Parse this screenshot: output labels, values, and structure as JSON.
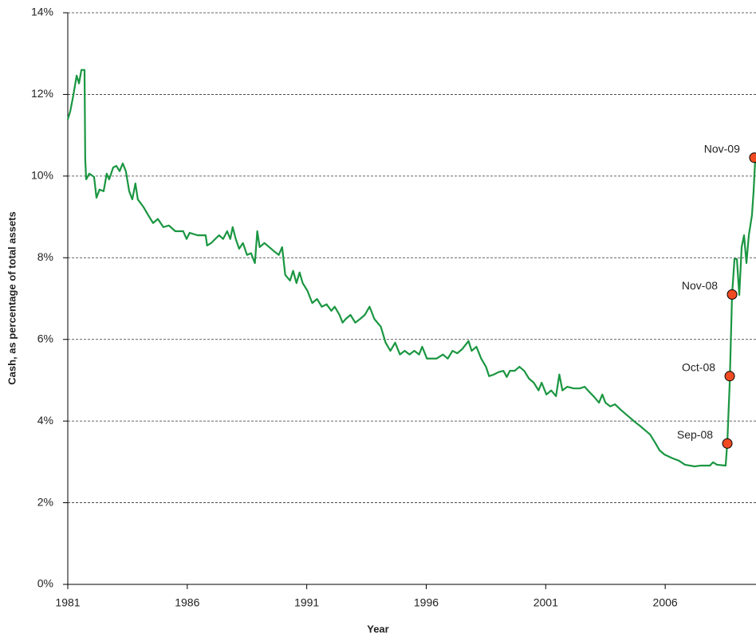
{
  "chart_data": {
    "type": "line",
    "xlabel": "Year",
    "ylabel": "Cash, as percentage of total assets",
    "color": "#1a9641",
    "marker_color": "#f04a23",
    "grid": true,
    "xlim": [
      1981,
      2009.8
    ],
    "xticks": [
      1981,
      1986,
      1991,
      1996,
      2001,
      2006
    ],
    "ylim": [
      0,
      14
    ],
    "yticks": [
      {
        "value": 0,
        "label": "0%"
      },
      {
        "value": 2,
        "label": "2%"
      },
      {
        "value": 4,
        "label": "4%"
      },
      {
        "value": 6,
        "label": "6%"
      },
      {
        "value": 8,
        "label": "8%"
      },
      {
        "value": 10,
        "label": "10%"
      },
      {
        "value": 12,
        "label": "12%"
      },
      {
        "value": 14,
        "label": "14%"
      }
    ],
    "x": [
      1981.0,
      1981.1,
      1981.23,
      1981.37,
      1981.47,
      1981.57,
      1981.7,
      1981.73,
      1981.77,
      1981.9,
      1982.1,
      1982.2,
      1982.33,
      1982.5,
      1982.63,
      1982.73,
      1982.9,
      1983.03,
      1983.17,
      1983.3,
      1983.43,
      1983.57,
      1983.7,
      1983.83,
      1983.93,
      1984.17,
      1984.37,
      1984.57,
      1984.77,
      1985.0,
      1985.23,
      1985.5,
      1985.83,
      1985.97,
      1986.1,
      1986.43,
      1986.77,
      1986.83,
      1987.0,
      1987.17,
      1987.33,
      1987.5,
      1987.67,
      1987.8,
      1987.9,
      1988.03,
      1988.17,
      1988.33,
      1988.5,
      1988.67,
      1988.83,
      1988.93,
      1989.03,
      1989.23,
      1989.43,
      1989.63,
      1989.83,
      1989.97,
      1990.1,
      1990.3,
      1990.43,
      1990.57,
      1990.7,
      1990.83,
      1991.03,
      1991.23,
      1991.43,
      1991.63,
      1991.83,
      1992.03,
      1992.17,
      1992.37,
      1992.5,
      1992.63,
      1992.83,
      1993.03,
      1993.23,
      1993.43,
      1993.63,
      1993.83,
      1994.1,
      1994.3,
      1994.5,
      1994.7,
      1994.9,
      1995.1,
      1995.3,
      1995.5,
      1995.7,
      1995.83,
      1996.03,
      1996.43,
      1996.7,
      1996.9,
      1997.1,
      1997.3,
      1997.5,
      1997.77,
      1997.9,
      1998.1,
      1998.3,
      1998.5,
      1998.63,
      1998.83,
      1999.03,
      1999.23,
      1999.37,
      1999.5,
      1999.7,
      1999.9,
      2000.1,
      2000.3,
      2000.5,
      2000.7,
      2000.83,
      2001.03,
      2001.23,
      2001.43,
      2001.57,
      2001.7,
      2001.9,
      2002.17,
      2002.43,
      2002.63,
      2002.83,
      2003.03,
      2003.23,
      2003.37,
      2003.5,
      2003.7,
      2003.9,
      2004.17,
      2004.37,
      2004.57,
      2004.77,
      2004.97,
      2005.17,
      2005.37,
      2005.57,
      2005.77,
      2005.97,
      2006.3,
      2006.57,
      2006.83,
      2007.23,
      2007.5,
      2007.87,
      2008.0,
      2008.17,
      2008.53,
      2008.6,
      2008.7,
      2008.8,
      2008.9,
      2009.0,
      2009.1,
      2009.2,
      2009.3,
      2009.4,
      2009.5,
      2009.63,
      2009.7,
      2009.77
    ],
    "values": [
      11.39,
      11.58,
      11.97,
      12.46,
      12.27,
      12.6,
      12.6,
      10.41,
      9.92,
      10.06,
      9.98,
      9.47,
      9.67,
      9.63,
      10.06,
      9.92,
      10.21,
      10.25,
      10.12,
      10.31,
      10.12,
      9.63,
      9.43,
      9.82,
      9.43,
      9.24,
      9.04,
      8.85,
      8.95,
      8.75,
      8.79,
      8.65,
      8.65,
      8.46,
      8.61,
      8.55,
      8.55,
      8.3,
      8.36,
      8.46,
      8.55,
      8.46,
      8.65,
      8.46,
      8.75,
      8.46,
      8.22,
      8.36,
      8.07,
      8.11,
      7.87,
      8.65,
      8.26,
      8.36,
      8.26,
      8.16,
      8.07,
      8.26,
      7.58,
      7.44,
      7.68,
      7.38,
      7.64,
      7.38,
      7.19,
      6.89,
      6.99,
      6.8,
      6.86,
      6.7,
      6.8,
      6.6,
      6.41,
      6.5,
      6.6,
      6.41,
      6.5,
      6.6,
      6.8,
      6.5,
      6.31,
      5.92,
      5.72,
      5.92,
      5.63,
      5.72,
      5.63,
      5.72,
      5.63,
      5.82,
      5.53,
      5.53,
      5.63,
      5.53,
      5.72,
      5.66,
      5.76,
      5.96,
      5.72,
      5.82,
      5.53,
      5.33,
      5.1,
      5.14,
      5.2,
      5.23,
      5.08,
      5.23,
      5.23,
      5.33,
      5.23,
      5.04,
      4.94,
      4.75,
      4.94,
      4.65,
      4.75,
      4.61,
      5.14,
      4.75,
      4.84,
      4.8,
      4.8,
      4.84,
      4.71,
      4.59,
      4.45,
      4.65,
      4.45,
      4.36,
      4.41,
      4.26,
      4.16,
      4.06,
      3.96,
      3.87,
      3.77,
      3.67,
      3.48,
      3.28,
      3.18,
      3.09,
      3.03,
      2.93,
      2.89,
      2.91,
      2.91,
      2.99,
      2.93,
      2.91,
      3.48,
      4.94,
      7.11,
      7.97,
      7.97,
      7.09,
      8.26,
      8.55,
      7.87,
      8.55,
      9.04,
      9.63,
      10.45
    ],
    "annotations": [
      {
        "label": "Sep-08",
        "x": 2008.6,
        "value": 3.45
      },
      {
        "label": "Oct-08",
        "x": 2008.7,
        "value": 5.1
      },
      {
        "label": "Nov-08",
        "x": 2008.8,
        "value": 7.1
      },
      {
        "label": "Nov-09",
        "x": 2009.73,
        "value": 10.45
      }
    ]
  }
}
